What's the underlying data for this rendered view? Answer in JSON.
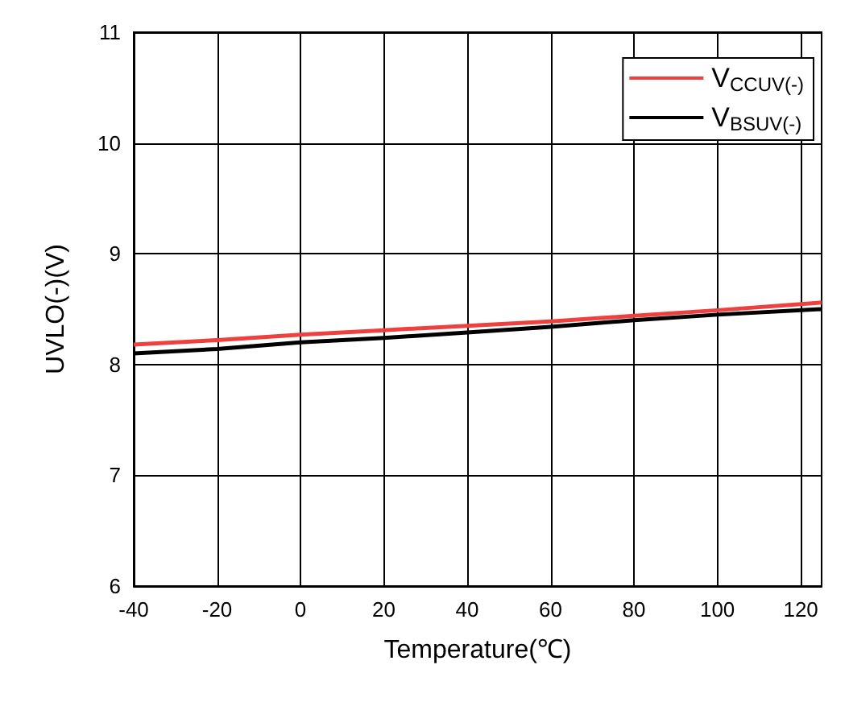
{
  "chart_data": {
    "type": "line",
    "xlabel": "Temperature(℃)",
    "ylabel": "UVLO(-)(V)",
    "x": [
      -40,
      -20,
      0,
      20,
      40,
      60,
      80,
      100,
      125
    ],
    "series": [
      {
        "name": "V$_{CCUV(-)}$",
        "color": "#ef4040",
        "values": [
          8.18,
          8.22,
          8.27,
          8.31,
          8.35,
          8.39,
          8.44,
          8.49,
          8.56
        ]
      },
      {
        "name": "V$_{BSUV(-)}$",
        "color": "#000000",
        "values": [
          8.1,
          8.14,
          8.2,
          8.24,
          8.29,
          8.34,
          8.4,
          8.45,
          8.5
        ]
      }
    ],
    "xlim": [
      -40,
      125
    ],
    "xticks": [
      -40,
      -20,
      0,
      20,
      40,
      60,
      80,
      100,
      120
    ],
    "ylim": [
      6,
      11
    ],
    "yticks": [
      6,
      7,
      8,
      9,
      10,
      11
    ],
    "grid": true,
    "legend": "top right",
    "marker": "none",
    "line_style": "solid"
  }
}
